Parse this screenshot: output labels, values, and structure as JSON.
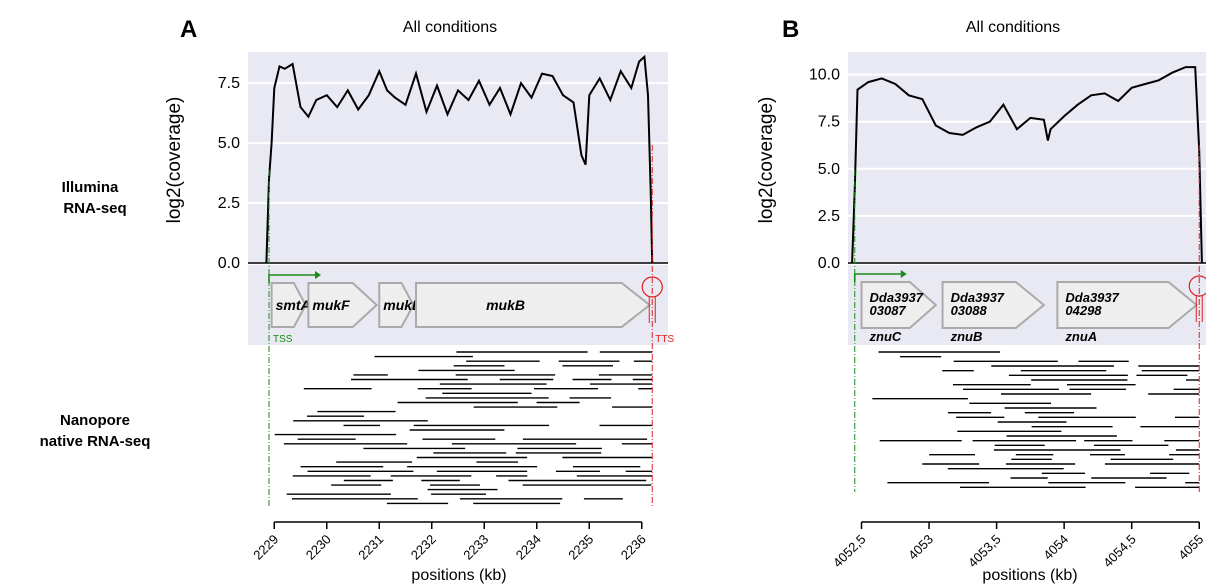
{
  "row_labels": {
    "illumina": [
      "Illumina",
      "RNA-seq"
    ],
    "nanopore": [
      "Nanopore",
      "native RNA-seq"
    ]
  },
  "colors": {
    "plot_bg": "#e8e9f2",
    "gene_fill": "#eeeeee",
    "gene_stroke": "#aaaaaa",
    "tss": "#1a8a1a",
    "tts": "#e02020",
    "coverage_line": "#000000"
  },
  "chart_data": [
    {
      "panel": "A",
      "title": "All conditions",
      "type": "line",
      "ylabel": "log2(coverage)",
      "yticks": [
        "0.0",
        "2.5",
        "5.0",
        "7.5"
      ],
      "ylim": [
        0,
        8.8
      ],
      "xlabel": "positions (kb)",
      "xlim": [
        2228.5,
        2236.5
      ],
      "xticks": [
        "2229",
        "2230",
        "2231",
        "2232",
        "2233",
        "2234",
        "2235",
        "2236"
      ],
      "tss_label": "TSS",
      "tts_label": "TTS",
      "tss_kb": 2228.9,
      "tts_kb": 2236.2,
      "coverage": {
        "x": [
          2228.85,
          2228.9,
          2228.95,
          2229.0,
          2229.1,
          2229.2,
          2229.35,
          2229.5,
          2229.65,
          2229.8,
          2230.0,
          2230.2,
          2230.4,
          2230.6,
          2230.8,
          2231.0,
          2231.15,
          2231.3,
          2231.5,
          2231.7,
          2231.9,
          2232.1,
          2232.3,
          2232.5,
          2232.7,
          2232.9,
          2233.1,
          2233.3,
          2233.5,
          2233.7,
          2233.9,
          2234.1,
          2234.3,
          2234.5,
          2234.7,
          2234.85,
          2234.93,
          2235.0,
          2235.2,
          2235.4,
          2235.6,
          2235.8,
          2235.95,
          2236.05,
          2236.12,
          2236.17,
          2236.2
        ],
        "y": [
          0,
          3.5,
          5.0,
          7.3,
          8.2,
          8.1,
          8.3,
          6.5,
          6.1,
          6.8,
          7.0,
          6.5,
          7.2,
          6.4,
          7.0,
          8.0,
          7.2,
          6.9,
          6.6,
          7.9,
          6.3,
          7.4,
          6.2,
          7.2,
          6.8,
          7.6,
          6.6,
          7.3,
          6.2,
          7.5,
          6.9,
          7.9,
          7.8,
          7.0,
          6.7,
          4.5,
          4.1,
          7.0,
          7.7,
          6.8,
          8.0,
          7.3,
          8.4,
          8.6,
          7.0,
          3.0,
          0
        ]
      },
      "genes": [
        {
          "name": "smtA",
          "start": 2228.95,
          "end": 2229.6
        },
        {
          "name": "mukF",
          "start": 2229.65,
          "end": 2230.95
        },
        {
          "name": "mukE",
          "start": 2231.0,
          "end": 2231.65
        },
        {
          "name": "mukB",
          "start": 2231.7,
          "end": 2236.15
        }
      ]
    },
    {
      "panel": "B",
      "title": "All conditions",
      "type": "line",
      "ylabel": "log2(coverage)",
      "yticks": [
        "0.0",
        "2.5",
        "5.0",
        "7.5",
        "10.0"
      ],
      "ylim": [
        0,
        11.2
      ],
      "xlabel": "positions (kb)",
      "xlim": [
        4052.4,
        4055.05
      ],
      "xticks": [
        "4052,5",
        "4053",
        "4053,5",
        "4054",
        "4054,5",
        "4055"
      ],
      "tss_kb": 4052.45,
      "tts_kb": 4055.0,
      "coverage": {
        "x": [
          4052.43,
          4052.45,
          4052.47,
          4052.55,
          4052.65,
          4052.75,
          4052.85,
          4052.95,
          4053.05,
          4053.15,
          4053.25,
          4053.35,
          4053.45,
          4053.55,
          4053.65,
          4053.75,
          4053.85,
          4053.88,
          4053.9,
          4054.0,
          4054.1,
          4054.2,
          4054.3,
          4054.4,
          4054.5,
          4054.6,
          4054.7,
          4054.8,
          4054.9,
          4054.97,
          4055.0,
          4055.02
        ],
        "y": [
          0,
          4.0,
          9.2,
          9.6,
          9.8,
          9.5,
          8.9,
          8.7,
          7.3,
          6.9,
          6.8,
          7.2,
          7.5,
          8.4,
          7.1,
          7.7,
          7.6,
          6.5,
          7.1,
          7.8,
          8.4,
          8.9,
          9.0,
          8.6,
          9.3,
          9.5,
          9.7,
          10.1,
          10.4,
          10.4,
          6.0,
          0
        ]
      },
      "genes": [
        {
          "name": [
            "Dda3937",
            "03087"
          ],
          "start": 4052.5,
          "end": 4053.05,
          "sub": "znuC"
        },
        {
          "name": [
            "Dda3937",
            "03088"
          ],
          "start": 4053.1,
          "end": 4053.85,
          "sub": "znuB"
        },
        {
          "name": [
            "Dda3937",
            "04298"
          ],
          "start": 4053.95,
          "end": 4054.98,
          "sub": "znuA"
        }
      ]
    }
  ]
}
